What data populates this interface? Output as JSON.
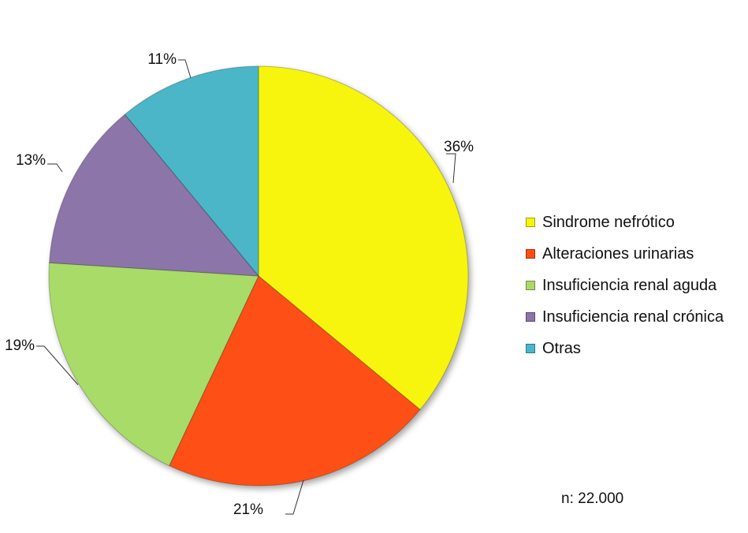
{
  "chart_data": {
    "type": "pie",
    "categories": [
      "Sindrome nefrótico",
      "Alteraciones urinarias",
      "Insuficiencia renal aguda",
      "Insuficiencia renal crónica",
      "Otras"
    ],
    "values": [
      36,
      21,
      19,
      13,
      11
    ],
    "labels": [
      "36%",
      "21%",
      "19%",
      "13%",
      "11%"
    ],
    "colors": [
      "#f7f50a",
      "#fd4f12",
      "#a9db68",
      "#8c74a8",
      "#4cb6c8"
    ],
    "legend_position": "right",
    "start_angle": "12 o'clock",
    "direction": "clockwise",
    "note": "n: 22.000"
  }
}
